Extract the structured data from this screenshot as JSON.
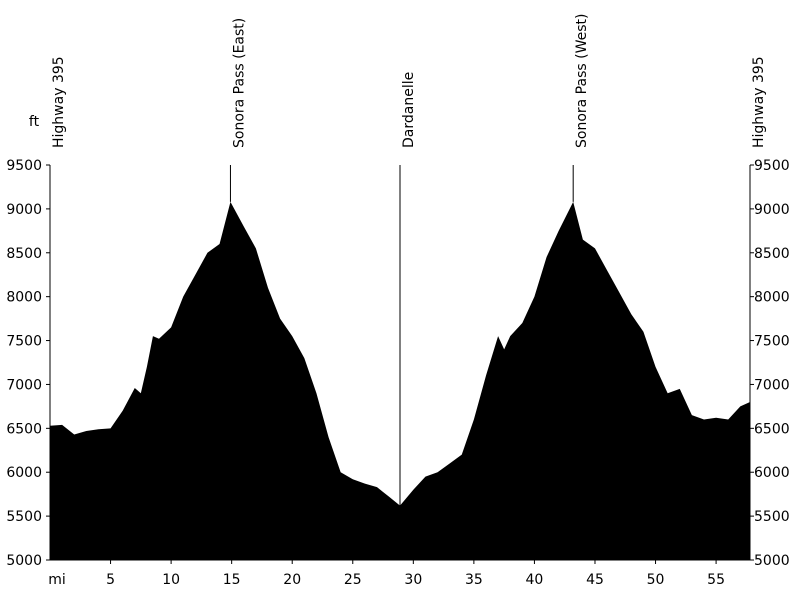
{
  "chart_data": {
    "type": "area",
    "x_label": "mi",
    "y_label": "ft",
    "x": [
      0,
      1,
      2,
      3,
      4,
      5,
      6,
      7,
      7.5,
      8,
      8.5,
      9,
      10,
      11,
      12,
      13,
      14,
      14.9,
      16,
      17,
      18,
      19,
      20,
      21,
      22,
      23,
      24,
      25,
      26,
      27,
      28,
      28.9,
      30,
      31,
      32,
      33,
      34,
      35,
      36,
      37,
      37.5,
      38,
      39,
      40,
      41,
      42,
      43.2,
      44,
      45,
      46,
      47,
      48,
      49,
      50,
      51,
      52,
      53,
      54,
      55,
      56,
      57,
      57.8
    ],
    "values": [
      6530,
      6540,
      6430,
      6470,
      6490,
      6500,
      6700,
      6960,
      6900,
      7200,
      7550,
      7520,
      7650,
      8000,
      8250,
      8500,
      8600,
      9080,
      8800,
      8550,
      8100,
      7750,
      7550,
      7300,
      6900,
      6400,
      6000,
      5920,
      5870,
      5830,
      5720,
      5620,
      5800,
      5950,
      6000,
      6100,
      6200,
      6600,
      7100,
      7550,
      7400,
      7550,
      7700,
      8000,
      8450,
      8750,
      9080,
      8650,
      8550,
      8300,
      8050,
      7800,
      7600,
      7200,
      6900,
      6950,
      6650,
      6600,
      6620,
      6600,
      6750,
      6800
    ],
    "color": "#000000",
    "xlim": [
      0,
      57.8
    ],
    "xticks": [
      5,
      10,
      15,
      20,
      25,
      30,
      35,
      40,
      45,
      50,
      55
    ],
    "ylim": [
      5000,
      9500
    ],
    "yticks": [
      5000,
      5500,
      6000,
      6500,
      7000,
      7500,
      8000,
      8500,
      9000,
      9500
    ],
    "annotations": [
      {
        "label": "Highway 395",
        "x": 0
      },
      {
        "label": "Sonora Pass (East)",
        "x": 14.9
      },
      {
        "label": "Dardanelle",
        "x": 28.9
      },
      {
        "label": "Sonora Pass (West)",
        "x": 43.2
      },
      {
        "label": "Highway 395",
        "x": 57.8
      }
    ]
  }
}
